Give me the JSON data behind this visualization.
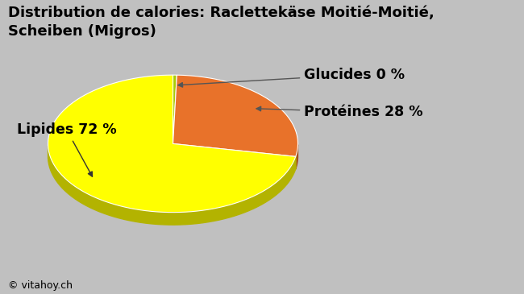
{
  "title": "Distribution de calories: Raclettekäse Moitié-Moitié,\nScheiben (Migros)",
  "slices": [
    0.5,
    27.5,
    72
  ],
  "labels": [
    "Glucides 0 %",
    "Protéines 28 %",
    "Lipides 72 %"
  ],
  "colors": [
    "#aacc00",
    "#e8722a",
    "#ffff00"
  ],
  "background_color": "#c0c0c0",
  "watermark": "© vitahoy.ch",
  "title_fontsize": 13,
  "label_fontsize": 12.5
}
